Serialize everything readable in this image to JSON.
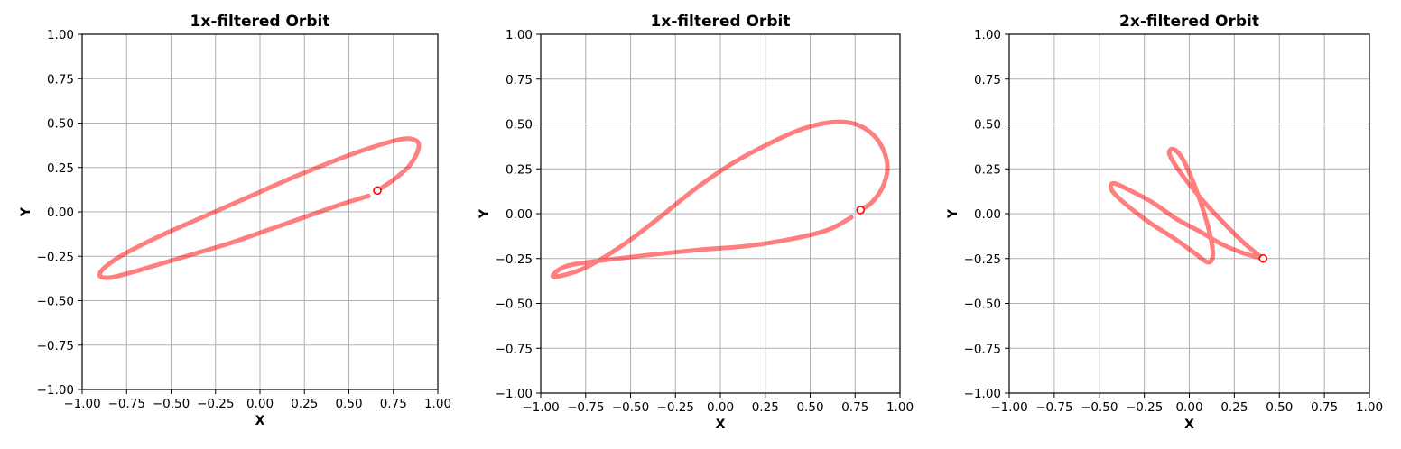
{
  "colors": {
    "orbit": "#ff0000",
    "marker": "#ff0000"
  },
  "chart_data": [
    {
      "type": "line",
      "title": "1x-filtered Orbit",
      "xlabel": "X",
      "ylabel": "Y",
      "xlim": [
        -1.0,
        1.0
      ],
      "ylim": [
        -1.0,
        1.0
      ],
      "grid": true,
      "xticks": [
        "−1.00",
        "−0.75",
        "−0.50",
        "−0.25",
        "0.00",
        "0.25",
        "0.50",
        "0.75",
        "1.00"
      ],
      "yticks": [
        "−1.00",
        "−0.75",
        "−0.50",
        "−0.25",
        "0.00",
        "0.25",
        "0.50",
        "0.75",
        "1.00"
      ],
      "series": [
        {
          "x": [
            0.61,
            0.45,
            0.25,
            0.05,
            -0.15,
            -0.35,
            -0.55,
            -0.72,
            -0.84,
            -0.9,
            -0.87,
            -0.75,
            -0.55,
            -0.3,
            -0.05,
            0.2,
            0.45,
            0.65,
            0.8,
            0.88,
            0.89,
            0.84,
            0.75,
            0.66
          ],
          "y": [
            0.09,
            0.04,
            -0.03,
            -0.1,
            -0.17,
            -0.23,
            -0.29,
            -0.34,
            -0.37,
            -0.36,
            -0.31,
            -0.23,
            -0.13,
            -0.02,
            0.09,
            0.2,
            0.3,
            0.37,
            0.41,
            0.4,
            0.35,
            0.26,
            0.18,
            0.12
          ]
        }
      ],
      "endpoint": {
        "x": 0.66,
        "y": 0.12
      }
    },
    {
      "type": "line",
      "title": "1x-filtered Orbit",
      "xlabel": "X",
      "ylabel": "Y",
      "xlim": [
        -1.0,
        1.0
      ],
      "ylim": [
        -1.0,
        1.0
      ],
      "grid": true,
      "xticks": [
        "−1.00",
        "−0.75",
        "−0.50",
        "−0.25",
        "0.00",
        "0.25",
        "0.50",
        "0.75",
        "1.00"
      ],
      "yticks": [
        "−1.00",
        "−0.75",
        "−0.50",
        "−0.25",
        "0.00",
        "0.25",
        "0.50",
        "0.75",
        "1.00"
      ],
      "series": [
        {
          "x": [
            0.73,
            0.6,
            0.4,
            0.15,
            -0.1,
            -0.4,
            -0.65,
            -0.85,
            -0.93,
            -0.9,
            -0.75,
            -0.55,
            -0.35,
            -0.15,
            0.05,
            0.25,
            0.45,
            0.62,
            0.75,
            0.85,
            0.91,
            0.93,
            0.9,
            0.84,
            0.78
          ],
          "y": [
            -0.02,
            -0.09,
            -0.14,
            -0.18,
            -0.2,
            -0.23,
            -0.26,
            -0.29,
            -0.34,
            -0.35,
            -0.3,
            -0.18,
            -0.03,
            0.13,
            0.27,
            0.38,
            0.47,
            0.51,
            0.5,
            0.44,
            0.35,
            0.25,
            0.14,
            0.06,
            0.02
          ]
        }
      ],
      "endpoint": {
        "x": 0.78,
        "y": 0.02
      }
    },
    {
      "type": "line",
      "title": "2x-filtered Orbit",
      "xlabel": "X",
      "ylabel": "Y",
      "xlim": [
        -1.0,
        1.0
      ],
      "ylim": [
        -1.0,
        1.0
      ],
      "grid": true,
      "xticks": [
        "−1.00",
        "−0.75",
        "−0.50",
        "−0.25",
        "0.00",
        "0.25",
        "0.50",
        "0.75",
        "1.00"
      ],
      "yticks": [
        "−1.00",
        "−0.75",
        "−0.50",
        "−0.25",
        "0.00",
        "0.25",
        "0.50",
        "0.75",
        "1.00"
      ],
      "series": [
        {
          "x": [
            0.41,
            0.3,
            0.18,
            0.06,
            -0.05,
            -0.11,
            -0.09,
            -0.04,
            0.02,
            0.08,
            0.12,
            0.13,
            0.1,
            0.03,
            -0.08,
            -0.22,
            -0.35,
            -0.43,
            -0.42,
            -0.33,
            -0.2,
            -0.07,
            0.06,
            0.18,
            0.3,
            0.41
          ],
          "y": [
            -0.25,
            -0.16,
            -0.04,
            0.09,
            0.23,
            0.33,
            0.36,
            0.31,
            0.18,
            0.01,
            -0.14,
            -0.24,
            -0.27,
            -0.22,
            -0.14,
            -0.05,
            0.05,
            0.13,
            0.17,
            0.13,
            0.06,
            -0.03,
            -0.1,
            -0.17,
            -0.22,
            -0.25
          ]
        }
      ],
      "endpoint": {
        "x": 0.41,
        "y": -0.25
      }
    }
  ]
}
